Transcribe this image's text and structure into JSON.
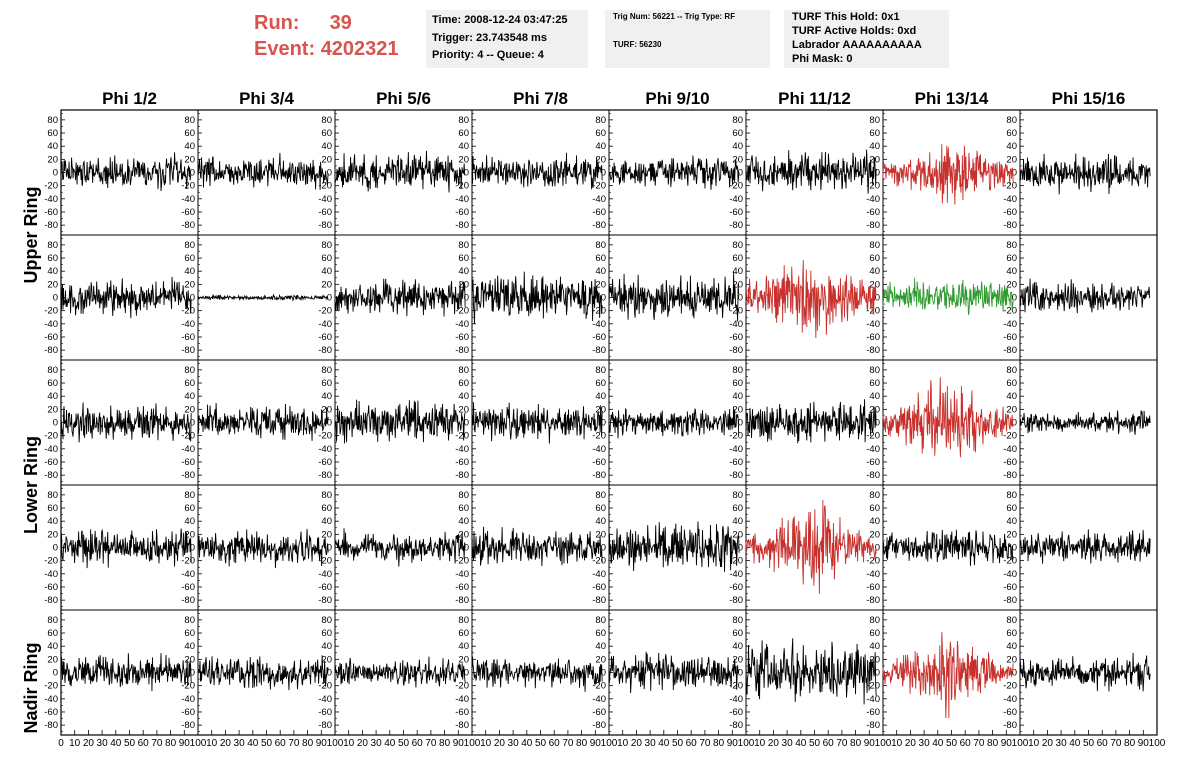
{
  "header": {
    "run_label": "Run:",
    "run_value": "39",
    "event_label": "Event:",
    "event_value": "4202321",
    "info_time": [
      "Time: 2008-12-24 03:47:25",
      "Trigger: 23.743548 ms",
      "Priority: 4 -- Queue: 4"
    ],
    "info_trig": [
      "Trig Num: 56221 -- Trig Type: RF",
      "TURF: 56230"
    ],
    "info_turf": [
      "TURF This Hold: 0x1",
      "TURF Active Holds: 0xd",
      "Labrador AAAAAAAAAA",
      "Phi Mask: 0"
    ]
  },
  "colors": {
    "normal": "#000000",
    "red": "#c8302c",
    "green": "#2e9a2e",
    "accent_text": "#d9534f",
    "info_bg": "#f0f0f0"
  },
  "chart_data": {
    "type": "line",
    "columns": [
      "Phi 1/2",
      "Phi 3/4",
      "Phi 5/6",
      "Phi 7/8",
      "Phi 9/10",
      "Phi 11/12",
      "Phi 13/14",
      "Phi 15/16"
    ],
    "rows": [
      "Upper Ring",
      "Lower Ring",
      "Nadir Ring"
    ],
    "xlim": [
      0,
      100
    ],
    "ylim": [
      -95,
      95
    ],
    "x_ticks": [
      0,
      10,
      20,
      30,
      40,
      50,
      60,
      70,
      80,
      90,
      100
    ],
    "y_ticks": [
      80,
      60,
      40,
      20,
      0,
      -20,
      -40,
      -60,
      -80
    ],
    "samples_per_trace": 260,
    "trace_x_range": [
      0,
      95
    ],
    "panels": [
      {
        "row": 0,
        "col": 0,
        "color": "black",
        "amp": 14,
        "seed": 11
      },
      {
        "row": 0,
        "col": 1,
        "color": "black",
        "amp": 13,
        "seed": 12
      },
      {
        "row": 0,
        "col": 2,
        "color": "black",
        "amp": 16,
        "seed": 13
      },
      {
        "row": 0,
        "col": 3,
        "color": "black",
        "amp": 14,
        "seed": 14
      },
      {
        "row": 0,
        "col": 4,
        "color": "black",
        "amp": 13,
        "seed": 15
      },
      {
        "row": 0,
        "col": 5,
        "color": "black",
        "amp": 17,
        "seed": 16
      },
      {
        "row": 0,
        "col": 6,
        "color": "red",
        "amp": 20,
        "seed": 17,
        "envelope": true
      },
      {
        "row": 0,
        "col": 7,
        "color": "black",
        "amp": 15,
        "seed": 18
      },
      {
        "row": 1,
        "col": 0,
        "color": "black",
        "amp": 15,
        "seed": 21
      },
      {
        "row": 1,
        "col": 1,
        "color": "black",
        "amp": 2,
        "seed": 22
      },
      {
        "row": 1,
        "col": 2,
        "color": "black",
        "amp": 14,
        "seed": 23
      },
      {
        "row": 1,
        "col": 3,
        "color": "black",
        "amp": 20,
        "seed": 24
      },
      {
        "row": 1,
        "col": 4,
        "color": "black",
        "amp": 18,
        "seed": 25
      },
      {
        "row": 1,
        "col": 5,
        "color": "red",
        "amp": 28,
        "seed": 26,
        "envelope": true
      },
      {
        "row": 1,
        "col": 6,
        "color": "green",
        "amp": 14,
        "seed": 27
      },
      {
        "row": 1,
        "col": 7,
        "color": "black",
        "amp": 13,
        "seed": 28
      },
      {
        "row": 2,
        "col": 0,
        "color": "black",
        "amp": 15,
        "seed": 31
      },
      {
        "row": 2,
        "col": 1,
        "color": "black",
        "amp": 14,
        "seed": 32
      },
      {
        "row": 2,
        "col": 2,
        "color": "black",
        "amp": 18,
        "seed": 33
      },
      {
        "row": 2,
        "col": 3,
        "color": "black",
        "amp": 15,
        "seed": 34
      },
      {
        "row": 2,
        "col": 4,
        "color": "black",
        "amp": 13,
        "seed": 35
      },
      {
        "row": 2,
        "col": 5,
        "color": "black",
        "amp": 17,
        "seed": 36
      },
      {
        "row": 2,
        "col": 6,
        "color": "red",
        "amp": 24,
        "seed": 37,
        "envelope": true
      },
      {
        "row": 2,
        "col": 7,
        "color": "black",
        "amp": 9,
        "seed": 38
      },
      {
        "row": 3,
        "col": 0,
        "color": "black",
        "amp": 15,
        "seed": 41
      },
      {
        "row": 3,
        "col": 1,
        "color": "black",
        "amp": 14,
        "seed": 42
      },
      {
        "row": 3,
        "col": 2,
        "color": "black",
        "amp": 13,
        "seed": 43
      },
      {
        "row": 3,
        "col": 3,
        "color": "black",
        "amp": 15,
        "seed": 44
      },
      {
        "row": 3,
        "col": 4,
        "color": "black",
        "amp": 20,
        "seed": 45
      },
      {
        "row": 3,
        "col": 5,
        "color": "red",
        "amp": 24,
        "seed": 46,
        "envelope": true
      },
      {
        "row": 3,
        "col": 6,
        "color": "black",
        "amp": 14,
        "seed": 47
      },
      {
        "row": 3,
        "col": 7,
        "color": "black",
        "amp": 14,
        "seed": 48
      },
      {
        "row": 4,
        "col": 0,
        "color": "black",
        "amp": 14,
        "seed": 51
      },
      {
        "row": 4,
        "col": 1,
        "color": "black",
        "amp": 15,
        "seed": 52
      },
      {
        "row": 4,
        "col": 2,
        "color": "black",
        "amp": 11,
        "seed": 53
      },
      {
        "row": 4,
        "col": 3,
        "color": "black",
        "amp": 13,
        "seed": 54
      },
      {
        "row": 4,
        "col": 4,
        "color": "black",
        "amp": 15,
        "seed": 55
      },
      {
        "row": 4,
        "col": 5,
        "color": "black",
        "amp": 24,
        "seed": 56
      },
      {
        "row": 4,
        "col": 6,
        "color": "red",
        "amp": 20,
        "seed": 57,
        "envelope": true
      },
      {
        "row": 4,
        "col": 7,
        "color": "black",
        "amp": 14,
        "seed": 58
      }
    ]
  }
}
